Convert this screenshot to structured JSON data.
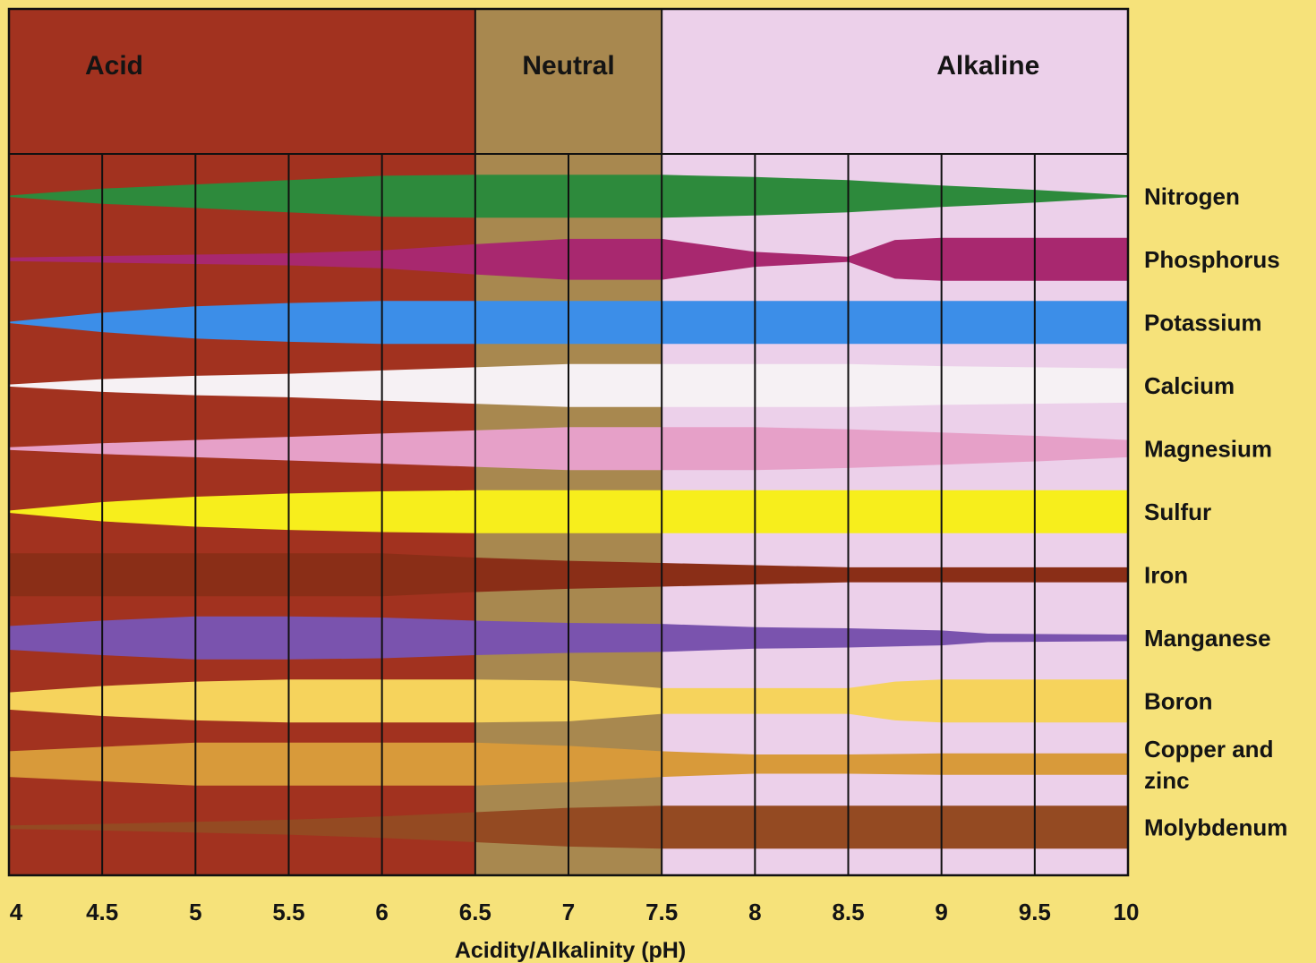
{
  "chart_data": {
    "type": "area",
    "title": "",
    "xlabel": "Acidity/Alkalinity (pH)",
    "ylabel": "",
    "xlim": [
      4,
      10
    ],
    "x_ticks": [
      "4",
      "4.5",
      "5",
      "5.5",
      "6",
      "6.5",
      "7",
      "7.5",
      "8",
      "8.5",
      "9",
      "9.5",
      "10"
    ],
    "grid": true,
    "zones": [
      {
        "label": "Acid",
        "from": 4,
        "to": 6.5,
        "color": "#a2321f"
      },
      {
        "label": "Neutral",
        "from": 6.5,
        "to": 7.5,
        "color": "#a8884f"
      },
      {
        "label": "Alkaline",
        "from": 7.5,
        "to": 10,
        "color": "#ecd0ea"
      }
    ],
    "series": [
      {
        "name": "Nitrogen",
        "color": "#2d8a3c",
        "x": [
          4,
          4.5,
          5,
          5.5,
          6,
          6.5,
          7,
          7.5,
          8,
          8.5,
          9,
          9.5,
          10
        ],
        "values": [
          0.03,
          0.35,
          0.55,
          0.75,
          0.95,
          1.0,
          1.0,
          1.0,
          0.9,
          0.75,
          0.5,
          0.3,
          0.05
        ]
      },
      {
        "name": "Phosphorus",
        "color": "#a8286f",
        "x": [
          4,
          4.5,
          5,
          5.5,
          6,
          6.5,
          7,
          7.5,
          8,
          8.5,
          8.75,
          9,
          9.5,
          10
        ],
        "values": [
          0.08,
          0.15,
          0.22,
          0.28,
          0.42,
          0.7,
          0.95,
          0.95,
          0.35,
          0.12,
          0.9,
          1.0,
          1.0,
          1.0
        ]
      },
      {
        "name": "Potassium",
        "color": "#3c8ee8",
        "x": [
          4,
          4.5,
          5,
          5.5,
          6,
          6.5,
          7,
          7.5,
          8,
          8.5,
          9,
          9.5,
          10
        ],
        "values": [
          0.03,
          0.45,
          0.75,
          0.9,
          1.0,
          1.0,
          1.0,
          1.0,
          1.0,
          1.0,
          1.0,
          1.0,
          1.0
        ]
      },
      {
        "name": "Calcium",
        "color": "#f6f1f4",
        "x": [
          4,
          4.5,
          5,
          5.5,
          6,
          6.5,
          7,
          7.5,
          8,
          8.5,
          9,
          9.5,
          10
        ],
        "values": [
          0.05,
          0.3,
          0.45,
          0.55,
          0.7,
          0.85,
          1.0,
          1.0,
          1.0,
          1.0,
          0.9,
          0.85,
          0.8
        ]
      },
      {
        "name": "Magnesium",
        "color": "#e6a0c8",
        "x": [
          4,
          4.5,
          5,
          5.5,
          6,
          6.5,
          7,
          7.5,
          8,
          8.5,
          9,
          9.5,
          10
        ],
        "values": [
          0.06,
          0.25,
          0.4,
          0.55,
          0.7,
          0.85,
          1.0,
          1.0,
          1.0,
          0.9,
          0.75,
          0.6,
          0.4
        ]
      },
      {
        "name": "Sulfur",
        "color": "#f7ee1c",
        "x": [
          4,
          4.5,
          5,
          5.5,
          6,
          6.5,
          7,
          7.5,
          8,
          8.5,
          9,
          9.5,
          10
        ],
        "values": [
          0.05,
          0.45,
          0.7,
          0.85,
          0.95,
          1.0,
          1.0,
          1.0,
          1.0,
          1.0,
          1.0,
          1.0,
          1.0
        ]
      },
      {
        "name": "Iron",
        "color": "#8a2e17",
        "x": [
          4,
          4.5,
          5,
          5.5,
          6,
          6.5,
          7,
          7.5,
          8,
          8.5,
          9,
          9.5,
          10
        ],
        "values": [
          1.0,
          1.0,
          1.0,
          1.0,
          1.0,
          0.8,
          0.65,
          0.55,
          0.45,
          0.35,
          0.35,
          0.35,
          0.35
        ]
      },
      {
        "name": "Manganese",
        "color": "#7a53ae",
        "x": [
          4,
          4.5,
          5,
          5.5,
          6,
          6.5,
          7,
          7.5,
          8,
          8.5,
          9,
          9.25,
          9.5,
          10
        ],
        "values": [
          0.55,
          0.8,
          1.0,
          1.0,
          0.95,
          0.8,
          0.7,
          0.65,
          0.5,
          0.45,
          0.35,
          0.2,
          0.18,
          0.15
        ]
      },
      {
        "name": "Boron",
        "color": "#f6d35c",
        "x": [
          4,
          4.5,
          5,
          5.5,
          6,
          6.5,
          7,
          7.5,
          8,
          8.5,
          8.75,
          9,
          9.5,
          10
        ],
        "values": [
          0.4,
          0.7,
          0.9,
          1.0,
          1.0,
          1.0,
          0.95,
          0.6,
          0.6,
          0.6,
          0.9,
          1.0,
          1.0,
          1.0
        ]
      },
      {
        "name": "Copper and zinc",
        "color": "#d89a3a",
        "x": [
          4,
          4.5,
          5,
          5.5,
          6,
          6.5,
          7,
          7.5,
          8,
          8.5,
          9,
          9.5,
          10
        ],
        "values": [
          0.6,
          0.8,
          1.0,
          1.0,
          1.0,
          1.0,
          0.85,
          0.6,
          0.45,
          0.45,
          0.5,
          0.5,
          0.5
        ]
      },
      {
        "name": "Molybdenum",
        "color": "#944a22",
        "x": [
          4,
          4.5,
          5,
          5.5,
          6,
          6.5,
          7,
          7.5,
          8,
          8.5,
          9,
          9.5,
          10
        ],
        "values": [
          0.08,
          0.15,
          0.25,
          0.35,
          0.5,
          0.7,
          0.9,
          1.0,
          1.0,
          1.0,
          1.0,
          1.0,
          1.0
        ]
      }
    ]
  }
}
